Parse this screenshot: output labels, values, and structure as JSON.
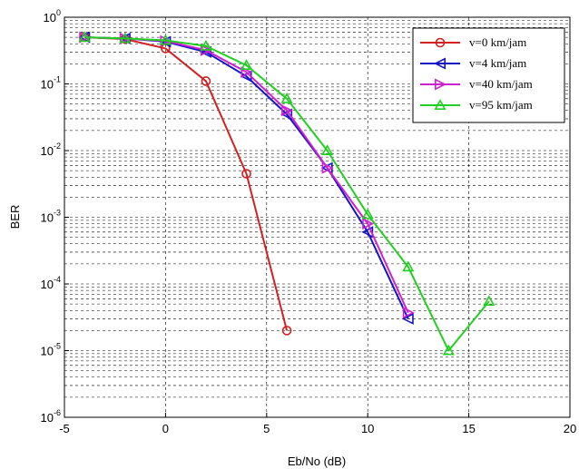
{
  "chart_data": {
    "type": "line",
    "title": "",
    "xlabel": "Eb/No (dB)",
    "ylabel": "BER",
    "xlim": [
      -5,
      20
    ],
    "ylim": [
      1e-06,
      1
    ],
    "y_scale": "log",
    "grid": true,
    "legend_position": "top-right",
    "x_ticks": [
      "-5",
      "0",
      "5",
      "10",
      "15",
      "20"
    ],
    "y_ticks": [
      {
        "base": "10",
        "exp": "-6",
        "value": 1e-06
      },
      {
        "base": "10",
        "exp": "-5",
        "value": 1e-05
      },
      {
        "base": "10",
        "exp": "-4",
        "value": 0.0001
      },
      {
        "base": "10",
        "exp": "-3",
        "value": 0.001
      },
      {
        "base": "10",
        "exp": "-2",
        "value": 0.01
      },
      {
        "base": "10",
        "exp": "-1",
        "value": 0.1
      },
      {
        "base": "10",
        "exp": "0",
        "value": 1
      }
    ],
    "series": [
      {
        "name": "v=0 km/jam",
        "color": "#d42020",
        "marker": "circle",
        "x": [
          -4,
          -2,
          0,
          2,
          4,
          6
        ],
        "y": [
          0.5,
          0.47,
          0.34,
          0.11,
          0.0045,
          2e-05
        ]
      },
      {
        "name": "v=4 km/jam",
        "color": "#1414c8",
        "marker": "triangle-left",
        "x": [
          -4,
          -2,
          0,
          2,
          4,
          6,
          8,
          10,
          12
        ],
        "y": [
          0.5,
          0.48,
          0.43,
          0.3,
          0.13,
          0.035,
          0.0055,
          0.0006,
          3e-05
        ]
      },
      {
        "name": "v=40 km/jam",
        "color": "#d020d0",
        "marker": "triangle-right",
        "x": [
          -4,
          -2,
          0,
          2,
          4,
          6,
          8,
          10,
          12
        ],
        "y": [
          0.5,
          0.48,
          0.44,
          0.32,
          0.15,
          0.04,
          0.0055,
          0.0008,
          3.7e-05
        ]
      },
      {
        "name": "v=95 km/jam",
        "color": "#20d020",
        "marker": "triangle-up",
        "x": [
          -4,
          -2,
          0,
          2,
          4,
          6,
          8,
          10,
          12,
          14,
          16
        ],
        "y": [
          0.5,
          0.48,
          0.45,
          0.37,
          0.19,
          0.06,
          0.01,
          0.0011,
          0.00018,
          1e-05,
          5.5e-05
        ]
      }
    ]
  }
}
